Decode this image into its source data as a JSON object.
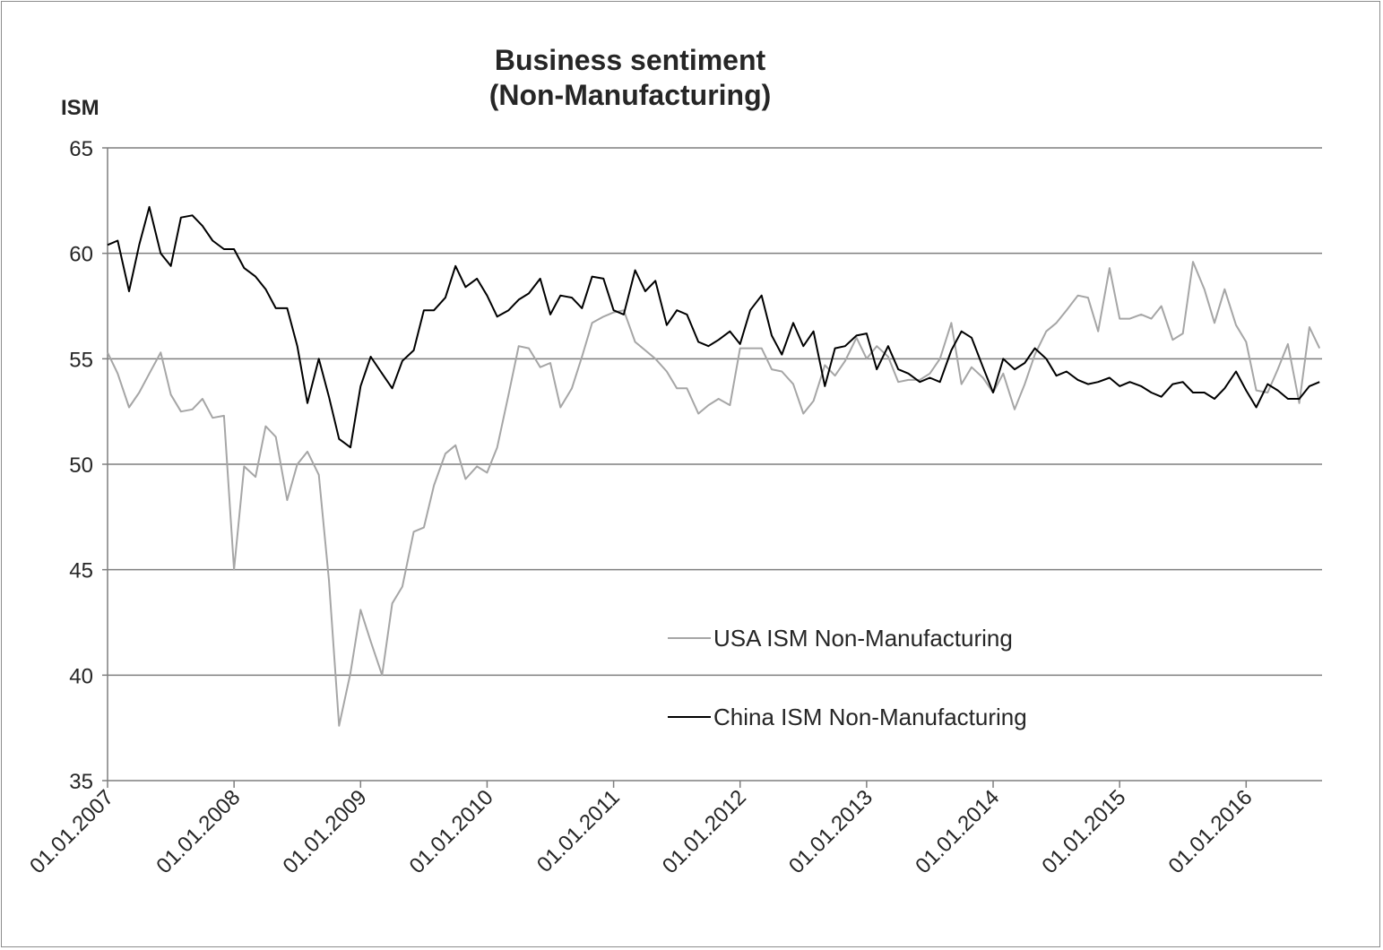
{
  "chart_data": {
    "type": "line",
    "title": "Business sentiment",
    "subtitle": "(Non-Manufacturing)",
    "ylabel": "ISM",
    "xlabel": "",
    "ylim": [
      35,
      65
    ],
    "yticks": [
      35,
      40,
      45,
      50,
      55,
      60,
      65
    ],
    "x_start": "2007-01",
    "x_end": "2016-07",
    "x_ticks": [
      "01.01.2007",
      "01.01.2008",
      "01.01.2009",
      "01.01.2010",
      "01.01.2011",
      "01.01.2012",
      "01.01.2013",
      "01.01.2014",
      "01.01.2015",
      "01.01.2016"
    ],
    "grid": true,
    "legend_position": "bottom-center-right",
    "series": [
      {
        "name": "USA ISM Non-Manufacturing",
        "color": "#a6a6a6",
        "values": [
          [
            2007.0,
            55.3
          ],
          [
            2007.08,
            54.3
          ],
          [
            2007.17,
            52.7
          ],
          [
            2007.25,
            53.4
          ],
          [
            2007.33,
            54.3
          ],
          [
            2007.42,
            55.3
          ],
          [
            2007.5,
            53.3
          ],
          [
            2007.58,
            52.5
          ],
          [
            2007.67,
            52.6
          ],
          [
            2007.75,
            53.1
          ],
          [
            2007.83,
            52.2
          ],
          [
            2007.92,
            52.3
          ],
          [
            2008.0,
            45.0
          ],
          [
            2008.08,
            49.9
          ],
          [
            2008.17,
            49.4
          ],
          [
            2008.25,
            51.8
          ],
          [
            2008.33,
            51.3
          ],
          [
            2008.42,
            48.3
          ],
          [
            2008.5,
            50.0
          ],
          [
            2008.58,
            50.6
          ],
          [
            2008.67,
            49.5
          ],
          [
            2008.75,
            44.5
          ],
          [
            2008.83,
            37.6
          ],
          [
            2008.92,
            40.1
          ],
          [
            2009.0,
            43.1
          ],
          [
            2009.08,
            41.6
          ],
          [
            2009.17,
            40.0
          ],
          [
            2009.25,
            43.4
          ],
          [
            2009.33,
            44.2
          ],
          [
            2009.42,
            46.8
          ],
          [
            2009.5,
            47.0
          ],
          [
            2009.58,
            49.0
          ],
          [
            2009.67,
            50.5
          ],
          [
            2009.75,
            50.9
          ],
          [
            2009.83,
            49.3
          ],
          [
            2009.92,
            49.9
          ],
          [
            2010.0,
            49.6
          ],
          [
            2010.08,
            50.8
          ],
          [
            2010.17,
            53.3
          ],
          [
            2010.25,
            55.6
          ],
          [
            2010.33,
            55.5
          ],
          [
            2010.42,
            54.6
          ],
          [
            2010.5,
            54.8
          ],
          [
            2010.58,
            52.7
          ],
          [
            2010.67,
            53.6
          ],
          [
            2010.75,
            55.1
          ],
          [
            2010.83,
            56.7
          ],
          [
            2010.92,
            57.0
          ],
          [
            2011.0,
            57.2
          ],
          [
            2011.08,
            57.3
          ],
          [
            2011.17,
            55.8
          ],
          [
            2011.25,
            55.4
          ],
          [
            2011.33,
            55.0
          ],
          [
            2011.42,
            54.4
          ],
          [
            2011.5,
            53.6
          ],
          [
            2011.58,
            53.6
          ],
          [
            2011.67,
            52.4
          ],
          [
            2011.75,
            52.8
          ],
          [
            2011.83,
            53.1
          ],
          [
            2011.92,
            52.8
          ],
          [
            2012.0,
            55.5
          ],
          [
            2012.08,
            55.5
          ],
          [
            2012.17,
            55.5
          ],
          [
            2012.25,
            54.5
          ],
          [
            2012.33,
            54.4
          ],
          [
            2012.42,
            53.8
          ],
          [
            2012.5,
            52.4
          ],
          [
            2012.58,
            53.0
          ],
          [
            2012.67,
            54.7
          ],
          [
            2012.75,
            54.2
          ],
          [
            2012.83,
            54.9
          ],
          [
            2012.92,
            56.0
          ],
          [
            2013.0,
            55.0
          ],
          [
            2013.08,
            55.6
          ],
          [
            2013.17,
            55.1
          ],
          [
            2013.25,
            53.9
          ],
          [
            2013.33,
            54.0
          ],
          [
            2013.42,
            54.0
          ],
          [
            2013.5,
            54.3
          ],
          [
            2013.58,
            55.0
          ],
          [
            2013.67,
            56.7
          ],
          [
            2013.75,
            53.8
          ],
          [
            2013.83,
            54.6
          ],
          [
            2013.92,
            54.1
          ],
          [
            2014.0,
            53.4
          ],
          [
            2014.08,
            54.3
          ],
          [
            2014.17,
            52.6
          ],
          [
            2014.25,
            53.8
          ],
          [
            2014.33,
            55.2
          ],
          [
            2014.42,
            56.3
          ],
          [
            2014.5,
            56.7
          ],
          [
            2014.58,
            57.3
          ],
          [
            2014.67,
            58.0
          ],
          [
            2014.75,
            57.9
          ],
          [
            2014.83,
            56.3
          ],
          [
            2014.92,
            59.3
          ],
          [
            2015.0,
            56.9
          ],
          [
            2015.08,
            56.9
          ],
          [
            2015.17,
            57.1
          ],
          [
            2015.25,
            56.9
          ],
          [
            2015.33,
            57.5
          ],
          [
            2015.42,
            55.9
          ],
          [
            2015.5,
            56.2
          ],
          [
            2015.58,
            59.6
          ],
          [
            2015.67,
            58.3
          ],
          [
            2015.75,
            56.7
          ],
          [
            2015.83,
            58.3
          ],
          [
            2015.92,
            56.6
          ],
          [
            2016.0,
            55.8
          ],
          [
            2016.08,
            53.5
          ],
          [
            2016.17,
            53.4
          ],
          [
            2016.25,
            54.5
          ],
          [
            2016.33,
            55.7
          ],
          [
            2016.42,
            52.9
          ],
          [
            2016.5,
            56.5
          ],
          [
            2016.58,
            55.5
          ]
        ]
      },
      {
        "name": "China ISM Non-Manufacturing",
        "color": "#000000",
        "values": [
          [
            2007.0,
            60.4
          ],
          [
            2007.08,
            60.6
          ],
          [
            2007.17,
            58.2
          ],
          [
            2007.25,
            60.4
          ],
          [
            2007.33,
            62.2
          ],
          [
            2007.42,
            60.0
          ],
          [
            2007.5,
            59.4
          ],
          [
            2007.58,
            61.7
          ],
          [
            2007.67,
            61.8
          ],
          [
            2007.75,
            61.3
          ],
          [
            2007.83,
            60.6
          ],
          [
            2007.92,
            60.2
          ],
          [
            2008.0,
            60.2
          ],
          [
            2008.08,
            59.3
          ],
          [
            2008.17,
            58.9
          ],
          [
            2008.25,
            58.3
          ],
          [
            2008.33,
            57.4
          ],
          [
            2008.42,
            57.4
          ],
          [
            2008.5,
            55.6
          ],
          [
            2008.58,
            52.9
          ],
          [
            2008.67,
            55.0
          ],
          [
            2008.75,
            53.2
          ],
          [
            2008.83,
            51.2
          ],
          [
            2008.92,
            50.8
          ],
          [
            2009.0,
            53.7
          ],
          [
            2009.08,
            55.1
          ],
          [
            2009.17,
            54.3
          ],
          [
            2009.25,
            53.6
          ],
          [
            2009.33,
            54.9
          ],
          [
            2009.42,
            55.4
          ],
          [
            2009.5,
            57.3
          ],
          [
            2009.58,
            57.3
          ],
          [
            2009.67,
            57.9
          ],
          [
            2009.75,
            59.4
          ],
          [
            2009.83,
            58.4
          ],
          [
            2009.92,
            58.8
          ],
          [
            2010.0,
            58.0
          ],
          [
            2010.08,
            57.0
          ],
          [
            2010.17,
            57.3
          ],
          [
            2010.25,
            57.8
          ],
          [
            2010.33,
            58.1
          ],
          [
            2010.42,
            58.8
          ],
          [
            2010.5,
            57.1
          ],
          [
            2010.58,
            58.0
          ],
          [
            2010.67,
            57.9
          ],
          [
            2010.75,
            57.4
          ],
          [
            2010.83,
            58.9
          ],
          [
            2010.92,
            58.8
          ],
          [
            2011.0,
            57.3
          ],
          [
            2011.08,
            57.1
          ],
          [
            2011.17,
            59.2
          ],
          [
            2011.25,
            58.2
          ],
          [
            2011.33,
            58.7
          ],
          [
            2011.42,
            56.6
          ],
          [
            2011.5,
            57.3
          ],
          [
            2011.58,
            57.1
          ],
          [
            2011.67,
            55.8
          ],
          [
            2011.75,
            55.6
          ],
          [
            2011.83,
            55.9
          ],
          [
            2011.92,
            56.3
          ],
          [
            2012.0,
            55.7
          ],
          [
            2012.08,
            57.3
          ],
          [
            2012.17,
            58.0
          ],
          [
            2012.25,
            56.1
          ],
          [
            2012.33,
            55.2
          ],
          [
            2012.42,
            56.7
          ],
          [
            2012.5,
            55.6
          ],
          [
            2012.58,
            56.3
          ],
          [
            2012.67,
            53.7
          ],
          [
            2012.75,
            55.5
          ],
          [
            2012.83,
            55.6
          ],
          [
            2012.92,
            56.1
          ],
          [
            2013.0,
            56.2
          ],
          [
            2013.08,
            54.5
          ],
          [
            2013.17,
            55.6
          ],
          [
            2013.25,
            54.5
          ],
          [
            2013.33,
            54.3
          ],
          [
            2013.42,
            53.9
          ],
          [
            2013.5,
            54.1
          ],
          [
            2013.58,
            53.9
          ],
          [
            2013.67,
            55.4
          ],
          [
            2013.75,
            56.3
          ],
          [
            2013.83,
            56.0
          ],
          [
            2013.92,
            54.6
          ],
          [
            2014.0,
            53.4
          ],
          [
            2014.08,
            55.0
          ],
          [
            2014.17,
            54.5
          ],
          [
            2014.25,
            54.8
          ],
          [
            2014.33,
            55.5
          ],
          [
            2014.42,
            55.0
          ],
          [
            2014.5,
            54.2
          ],
          [
            2014.58,
            54.4
          ],
          [
            2014.67,
            54.0
          ],
          [
            2014.75,
            53.8
          ],
          [
            2014.83,
            53.9
          ],
          [
            2014.92,
            54.1
          ],
          [
            2015.0,
            53.7
          ],
          [
            2015.08,
            53.9
          ],
          [
            2015.17,
            53.7
          ],
          [
            2015.25,
            53.4
          ],
          [
            2015.33,
            53.2
          ],
          [
            2015.42,
            53.8
          ],
          [
            2015.5,
            53.9
          ],
          [
            2015.58,
            53.4
          ],
          [
            2015.67,
            53.4
          ],
          [
            2015.75,
            53.1
          ],
          [
            2015.83,
            53.6
          ],
          [
            2015.92,
            54.4
          ],
          [
            2016.0,
            53.5
          ],
          [
            2016.08,
            52.7
          ],
          [
            2016.17,
            53.8
          ],
          [
            2016.25,
            53.5
          ],
          [
            2016.33,
            53.1
          ],
          [
            2016.42,
            53.1
          ],
          [
            2016.5,
            53.7
          ],
          [
            2016.58,
            53.9
          ]
        ]
      }
    ]
  }
}
